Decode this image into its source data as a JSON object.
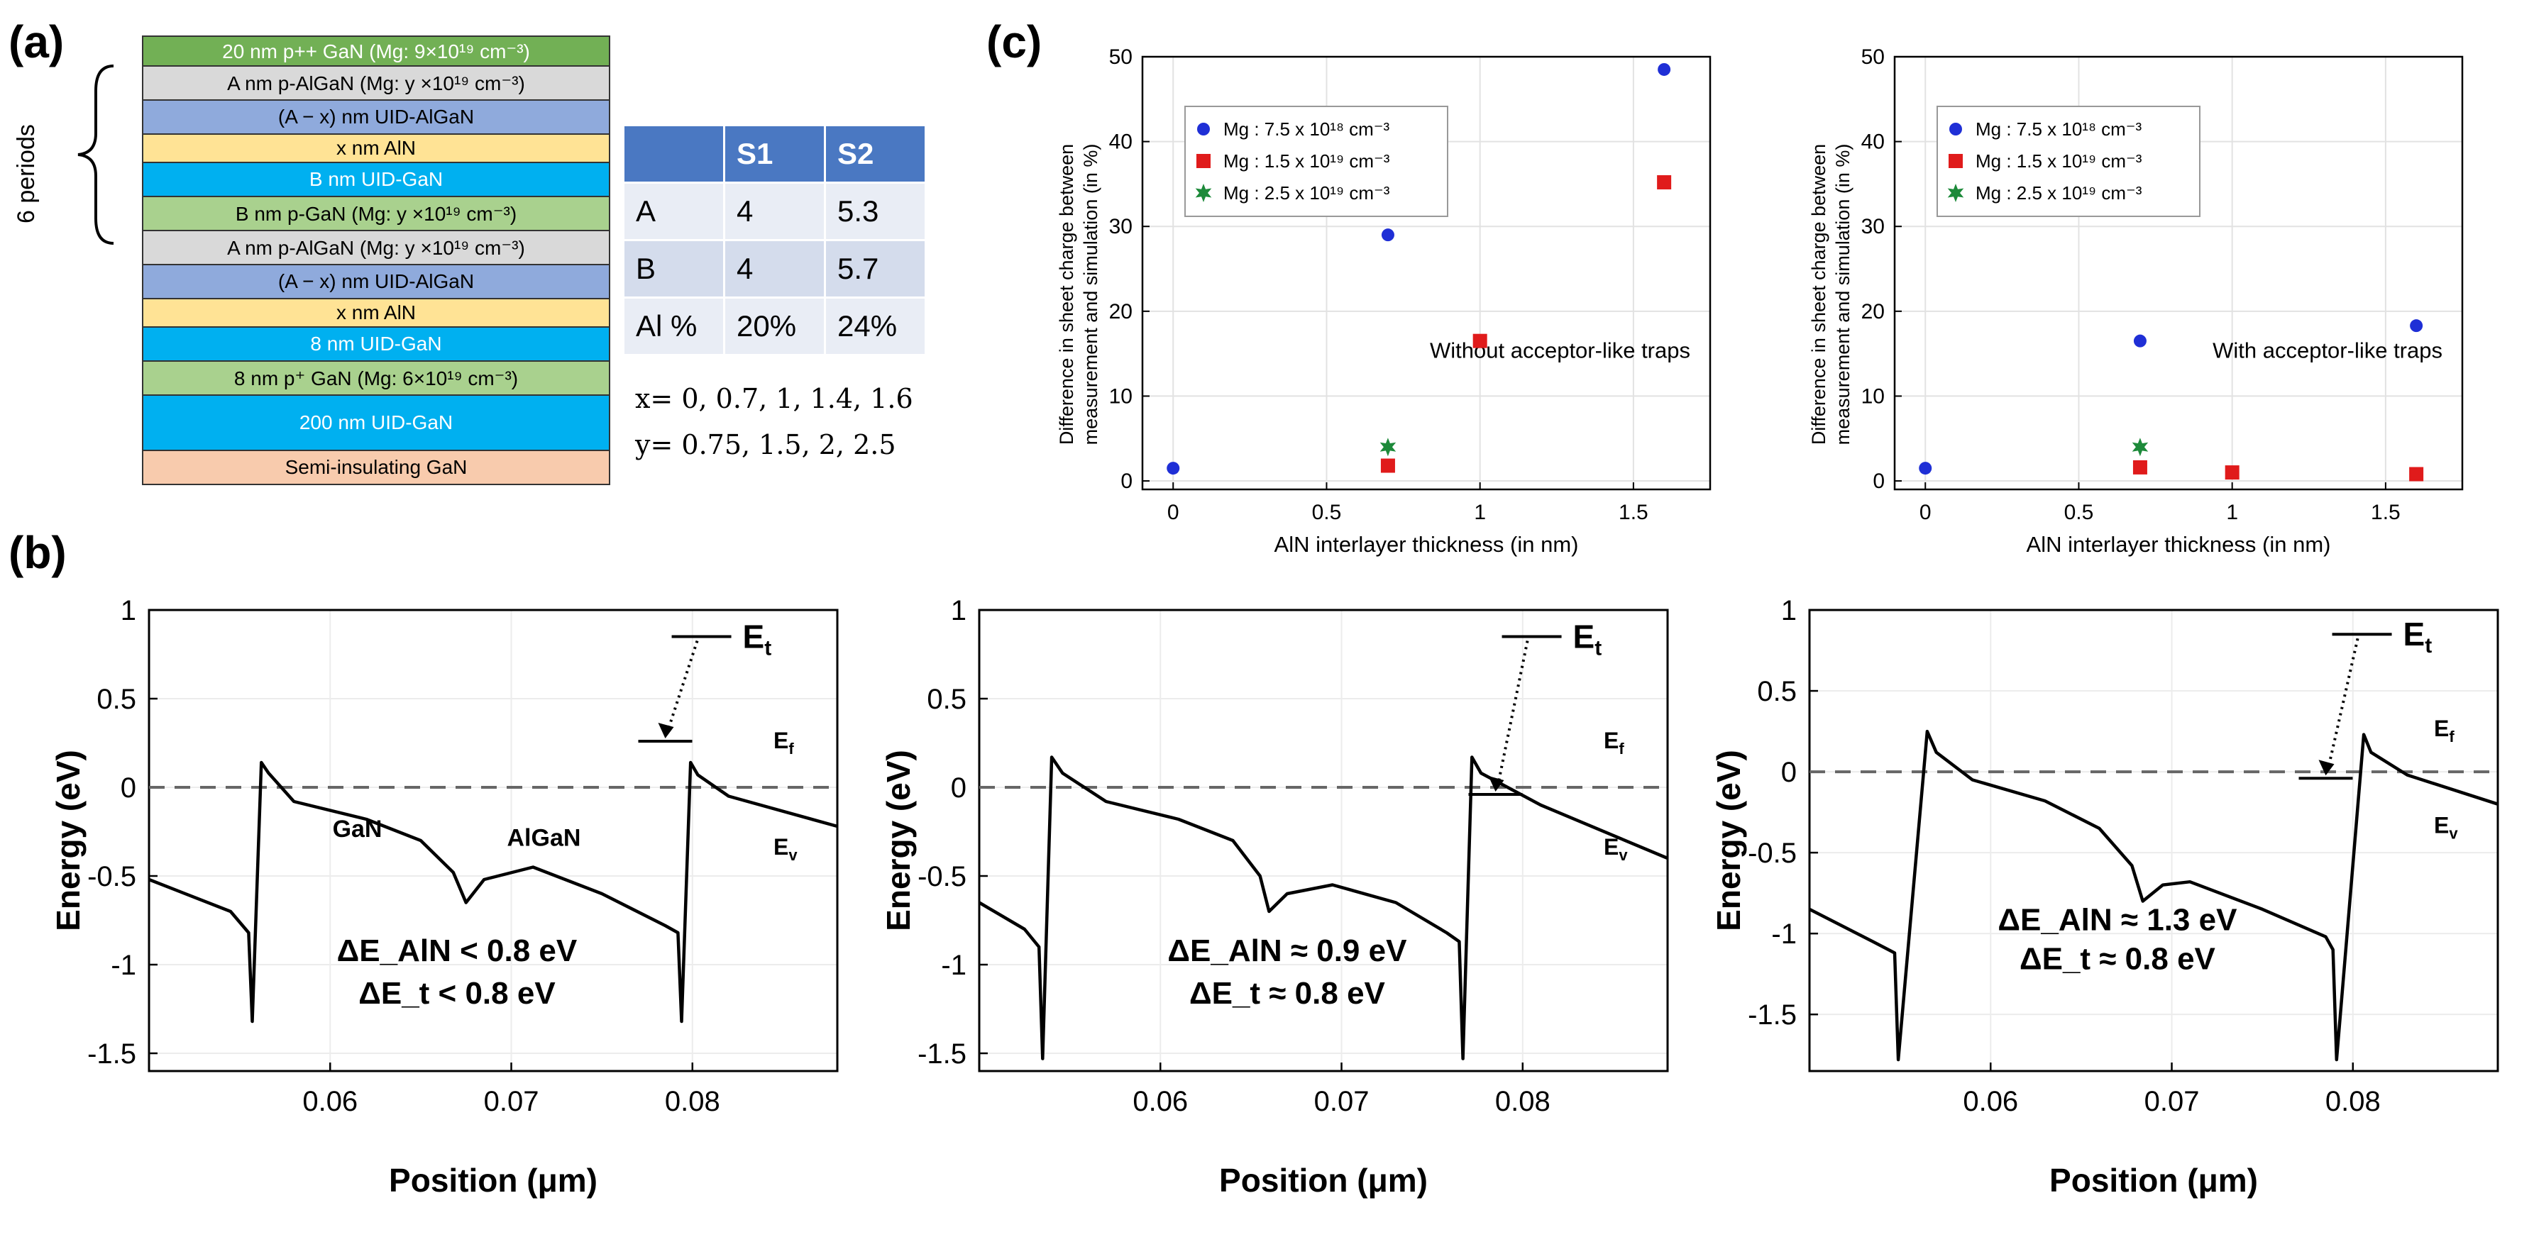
{
  "panels": {
    "a": "(a)",
    "b": "(b)",
    "c": "(c)"
  },
  "stack": {
    "periods_label": "6 periods",
    "layers": [
      {
        "text": "20 nm p++ GaN (Mg: 9×10¹⁹ cm⁻³)",
        "color": "#72b055"
      },
      {
        "text": "A nm p-AlGaN (Mg: y ×10¹⁹ cm⁻³)",
        "color": "#d9d9d9"
      },
      {
        "text": "(A − x) nm UID-AlGaN",
        "color": "#8faadc"
      },
      {
        "text": "x nm AlN",
        "color": "#ffe395"
      },
      {
        "text": "B nm UID-GaN",
        "color": "#00b0f0"
      },
      {
        "text": "B nm p-GaN (Mg: y ×10¹⁹ cm⁻³)",
        "color": "#a9d18e"
      },
      {
        "text": "A nm p-AlGaN (Mg: y ×10¹⁹ cm⁻³)",
        "color": "#d9d9d9"
      },
      {
        "text": "(A − x) nm UID-AlGaN",
        "color": "#8faadc"
      },
      {
        "text": "x nm AlN",
        "color": "#ffe395"
      },
      {
        "text": "8 nm UID-GaN",
        "color": "#00b0f0"
      },
      {
        "text": "8 nm p⁺ GaN (Mg: 6×10¹⁹ cm⁻³)",
        "color": "#a9d18e"
      },
      {
        "text": "200 nm UID-GaN",
        "color": "#00b0f0"
      },
      {
        "text": "Semi-insulating GaN",
        "color": "#f8cbad"
      }
    ]
  },
  "sample_table": {
    "headers": [
      "",
      "S1",
      "S2"
    ],
    "rows": [
      [
        "A",
        "4",
        "5.3"
      ],
      [
        "B",
        "4",
        "5.7"
      ],
      [
        "Al %",
        "20%",
        "24%"
      ]
    ]
  },
  "variables": {
    "x_line": "x= 0, 0.7, 1, 1.4, 1.6",
    "y_line": "y= 0.75, 1.5, 2, 2.5"
  },
  "chart_data": [
    {
      "type": "scatter",
      "id": "c-left",
      "title": "",
      "xlabel": "AlN interlayer thickness (in nm)",
      "ylabel": "Difference in sheet charge between measurement and simulation (in %)",
      "ylabel_lines": [
        "Difference in sheet charge between",
        "measurement and simulation (in %)"
      ],
      "xlim": [
        -0.1,
        1.75
      ],
      "ylim": [
        -1,
        50
      ],
      "xticks": [
        "0",
        "0.5",
        "1",
        "1.5"
      ],
      "xtick_values": [
        0,
        0.5,
        1,
        1.5
      ],
      "yticks": [
        "0",
        "10",
        "20",
        "30",
        "40",
        "50"
      ],
      "ytick_values": [
        0,
        10,
        20,
        30,
        40,
        50
      ],
      "annotation": "Without acceptor-like traps",
      "series": [
        {
          "name": "Mg : 7.5 x 10¹⁸ cm⁻³",
          "marker": "circle",
          "color": "#1f2fd6",
          "x": [
            0,
            0.7,
            1.6
          ],
          "y": [
            1.5,
            29,
            48.5
          ]
        },
        {
          "name": "Mg : 1.5 x 10¹⁹ cm⁻³",
          "marker": "square",
          "color": "#e01b1b",
          "x": [
            0.7,
            1,
            1.6
          ],
          "y": [
            1.8,
            16.5,
            35.2
          ]
        },
        {
          "name": "Mg : 2.5 x 10¹⁹ cm⁻³",
          "marker": "star",
          "color": "#1d8a3a",
          "x": [
            0.7
          ],
          "y": [
            4
          ]
        }
      ]
    },
    {
      "type": "scatter",
      "id": "c-right",
      "title": "",
      "xlabel": "AlN interlayer thickness (in nm)",
      "ylabel": "Difference in sheet charge between measurement and simulation (in %)",
      "ylabel_lines": [
        "Difference in sheet charge between",
        "measurement and simulation (in %)"
      ],
      "xlim": [
        -0.1,
        1.75
      ],
      "ylim": [
        -1,
        50
      ],
      "xticks": [
        "0",
        "0.5",
        "1",
        "1.5"
      ],
      "xtick_values": [
        0,
        0.5,
        1,
        1.5
      ],
      "yticks": [
        "0",
        "10",
        "20",
        "30",
        "40",
        "50"
      ],
      "ytick_values": [
        0,
        10,
        20,
        30,
        40,
        50
      ],
      "annotation": "With acceptor-like traps",
      "series": [
        {
          "name": "Mg : 7.5 x 10¹⁸ cm⁻³",
          "marker": "circle",
          "color": "#1f2fd6",
          "x": [
            0,
            0.7,
            1.6
          ],
          "y": [
            1.5,
            16.5,
            18.3
          ]
        },
        {
          "name": "Mg : 1.5 x 10¹⁹ cm⁻³",
          "marker": "square",
          "color": "#e01b1b",
          "x": [
            0.7,
            1,
            1.6
          ],
          "y": [
            1.6,
            1.0,
            0.8
          ]
        },
        {
          "name": "Mg : 2.5 x 10¹⁹ cm⁻³",
          "marker": "star",
          "color": "#1d8a3a",
          "x": [
            0.7
          ],
          "y": [
            4
          ]
        }
      ]
    },
    {
      "type": "line",
      "id": "b-1",
      "xlabel": "Position (μm)",
      "ylabel": "Energy (eV)",
      "xlim": [
        0.05,
        0.088
      ],
      "ylim": [
        -1.6,
        1.0
      ],
      "xticks": [
        "0.06",
        "0.07",
        "0.08"
      ],
      "xtick_values": [
        0.06,
        0.07,
        0.08
      ],
      "yticks": [
        "1",
        "0.5",
        "0",
        "-0.5",
        "-1",
        "-1.5"
      ],
      "ytick_values": [
        1,
        0.5,
        0,
        -0.5,
        -1,
        -1.5
      ],
      "ef_level": 0,
      "labels": {
        "et": "E",
        "et_sub": "t",
        "ef": "E",
        "ef_sub": "f",
        "ev": "E",
        "ev_sub": "v",
        "gan": "GaN",
        "algan": "AlGaN"
      },
      "eq1": "ΔE_AlN < 0.8 eV",
      "eq2": "ΔE_t < 0.8 eV",
      "et_level": 0.85,
      "trap_level": 0.26,
      "series": [
        {
          "name": "Ev",
          "x": [
            0.05,
            0.0545,
            0.0555,
            0.0557,
            0.0562,
            0.0566,
            0.058,
            0.062,
            0.065,
            0.0668,
            0.0675,
            0.0685,
            0.0712,
            0.075,
            0.0785,
            0.0792,
            0.0794,
            0.0799,
            0.0803,
            0.082,
            0.088
          ],
          "y": [
            -0.52,
            -0.7,
            -0.82,
            -1.32,
            0.14,
            0.08,
            -0.08,
            -0.18,
            -0.3,
            -0.48,
            -0.65,
            -0.52,
            -0.45,
            -0.6,
            -0.78,
            -0.82,
            -1.32,
            0.14,
            0.07,
            -0.05,
            -0.22
          ]
        }
      ]
    },
    {
      "type": "line",
      "id": "b-2",
      "xlabel": "Position (μm)",
      "ylabel": "Energy (eV)",
      "xlim": [
        0.05,
        0.088
      ],
      "ylim": [
        -1.6,
        1.0
      ],
      "xticks": [
        "0.06",
        "0.07",
        "0.08"
      ],
      "xtick_values": [
        0.06,
        0.07,
        0.08
      ],
      "yticks": [
        "1",
        "0.5",
        "0",
        "-0.5",
        "-1",
        "-1.5"
      ],
      "ytick_values": [
        1,
        0.5,
        0,
        -0.5,
        -1,
        -1.5
      ],
      "ef_level": 0,
      "labels": {
        "et": "E",
        "et_sub": "t",
        "ef": "E",
        "ef_sub": "f",
        "ev": "E",
        "ev_sub": "v"
      },
      "eq1": "ΔE_AlN ≈ 0.9 eV",
      "eq2": "ΔE_t ≈ 0.8 eV",
      "et_level": 0.85,
      "trap_level": -0.04,
      "series": [
        {
          "name": "Ev",
          "x": [
            0.05,
            0.0525,
            0.0533,
            0.0535,
            0.054,
            0.0546,
            0.057,
            0.061,
            0.064,
            0.0655,
            0.066,
            0.067,
            0.0695,
            0.073,
            0.0758,
            0.0765,
            0.0767,
            0.0772,
            0.0777,
            0.081,
            0.088
          ],
          "y": [
            -0.65,
            -0.8,
            -0.9,
            -1.53,
            0.17,
            0.08,
            -0.08,
            -0.18,
            -0.3,
            -0.5,
            -0.7,
            -0.6,
            -0.55,
            -0.65,
            -0.82,
            -0.87,
            -1.53,
            0.17,
            0.08,
            -0.1,
            -0.4
          ]
        }
      ]
    },
    {
      "type": "line",
      "id": "b-3",
      "xlabel": "Position (μm)",
      "ylabel": "Energy (eV)",
      "xlim": [
        0.05,
        0.088
      ],
      "ylim": [
        -1.85,
        1.0
      ],
      "xticks": [
        "0.06",
        "0.07",
        "0.08"
      ],
      "xtick_values": [
        0.06,
        0.07,
        0.08
      ],
      "yticks": [
        "1",
        "0.5",
        "0",
        "-0.5",
        "-1",
        "-1.5"
      ],
      "ytick_values": [
        1,
        0.5,
        0,
        -0.5,
        -1,
        -1.5
      ],
      "ef_level": 0,
      "labels": {
        "et": "E",
        "et_sub": "t",
        "ef": "E",
        "ef_sub": "f",
        "ev": "E",
        "ev_sub": "v"
      },
      "eq1": "ΔE_AlN ≈ 1.3 eV",
      "eq2": "ΔE_t ≈ 0.8 eV",
      "et_level": 0.85,
      "trap_level": -0.04,
      "series": [
        {
          "name": "Ev",
          "x": [
            0.05,
            0.0535,
            0.0547,
            0.0549,
            0.0565,
            0.057,
            0.059,
            0.063,
            0.066,
            0.0678,
            0.0684,
            0.0695,
            0.071,
            0.075,
            0.0785,
            0.0789,
            0.0791,
            0.0806,
            0.081,
            0.083,
            0.088
          ],
          "y": [
            -0.85,
            -1.05,
            -1.12,
            -1.78,
            0.25,
            0.12,
            -0.05,
            -0.18,
            -0.35,
            -0.58,
            -0.8,
            -0.7,
            -0.68,
            -0.85,
            -1.02,
            -1.1,
            -1.78,
            0.23,
            0.12,
            -0.02,
            -0.2
          ]
        }
      ]
    }
  ]
}
